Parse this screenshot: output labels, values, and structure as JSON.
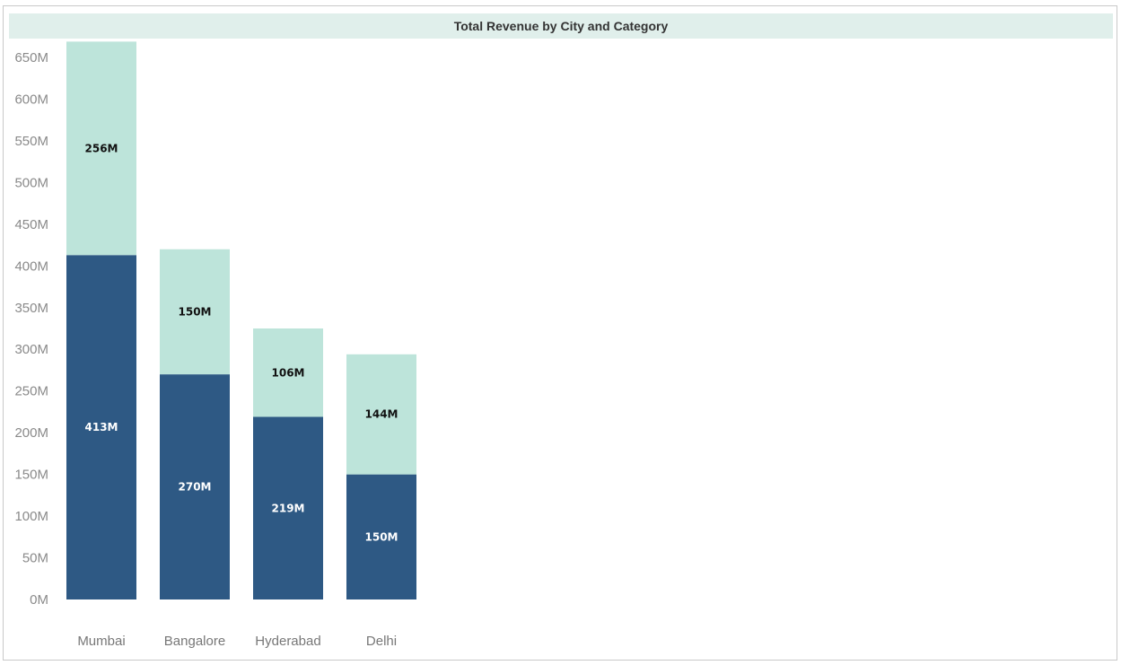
{
  "chart_data": {
    "type": "bar",
    "stacked": true,
    "title": "Total Revenue by City and Category",
    "xlabel": "",
    "ylabel": "",
    "categories": [
      "Mumbai",
      "Bangalore",
      "Hyderabad",
      "Delhi"
    ],
    "series": [
      {
        "values": [
          413,
          270,
          219,
          150
        ],
        "labels": [
          "413M",
          "270M",
          "219M",
          "150M"
        ],
        "color": "#2e5984",
        "label_color": "#ffffff"
      },
      {
        "values": [
          256,
          150,
          106,
          144
        ],
        "labels": [
          "256M",
          "150M",
          "106M",
          "144M"
        ],
        "color": "#bde4da",
        "label_color": "#111111"
      }
    ],
    "ylim": [
      0,
      669
    ],
    "yticks": [
      0,
      50,
      100,
      150,
      200,
      250,
      300,
      350,
      400,
      450,
      500,
      550,
      600,
      650
    ],
    "ytick_labels": [
      "0M",
      "50M",
      "100M",
      "150M",
      "200M",
      "250M",
      "300M",
      "350M",
      "400M",
      "450M",
      "500M",
      "550M",
      "600M",
      "650M"
    ],
    "grid": false,
    "legend": "none"
  }
}
